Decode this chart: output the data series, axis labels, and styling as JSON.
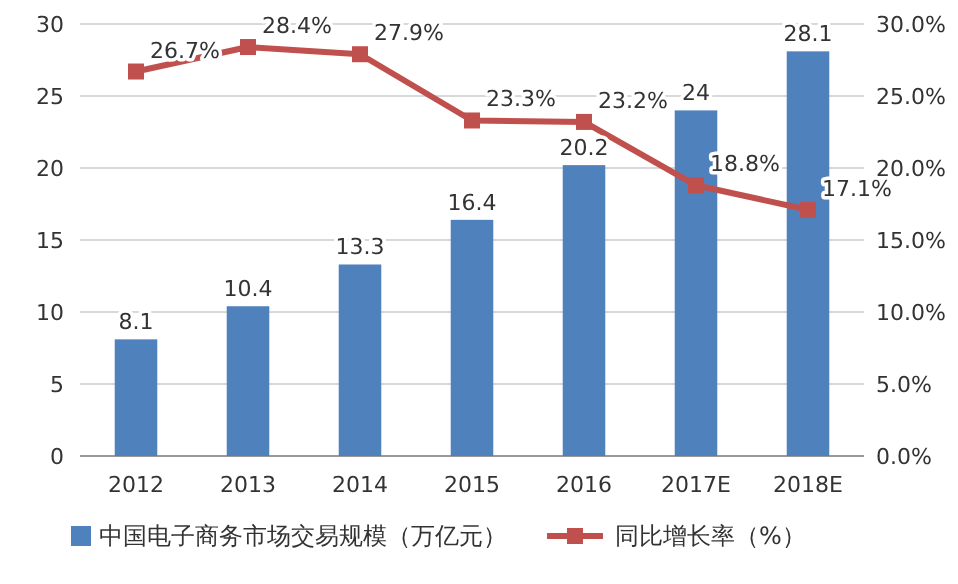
{
  "chart_data": {
    "type": "bar",
    "categories": [
      "2012",
      "2013",
      "2014",
      "2015",
      "2016",
      "2017E",
      "2018E"
    ],
    "series": [
      {
        "name": "中国电子商务市场交易规模（万亿元）",
        "color": "#4f81bd",
        "values": [
          8.1,
          10.4,
          13.3,
          16.4,
          20.2,
          24,
          28.1
        ],
        "value_labels": [
          "8.1",
          "10.4",
          "13.3",
          "16.4",
          "20.2",
          "24",
          "28.1"
        ]
      },
      {
        "name": "同比增长率（%）",
        "type": "line",
        "axis": "y2",
        "color": "#c0504d",
        "marker": "square",
        "values": [
          26.7,
          28.4,
          27.9,
          23.3,
          23.2,
          18.8,
          17.1
        ],
        "value_labels": [
          "26.7%",
          "28.4%",
          "27.9%",
          "23.3%",
          "23.2%",
          "18.8%",
          "17.1%"
        ]
      }
    ],
    "ylim": [
      0,
      30
    ],
    "yticks": [
      0,
      5,
      10,
      15,
      20,
      25,
      30
    ],
    "y2lim": [
      0,
      30
    ],
    "y2ticks": [
      {
        "value": 0,
        "label": "0.0%"
      },
      {
        "value": 5,
        "label": "5.0%"
      },
      {
        "value": 10,
        "label": "10.0%"
      },
      {
        "value": 15,
        "label": "15.0%"
      },
      {
        "value": 20,
        "label": "20.0%"
      },
      {
        "value": 25,
        "label": "25.0%"
      },
      {
        "value": 30,
        "label": "30.0%"
      }
    ],
    "grid": "y",
    "legend": "bottom"
  }
}
